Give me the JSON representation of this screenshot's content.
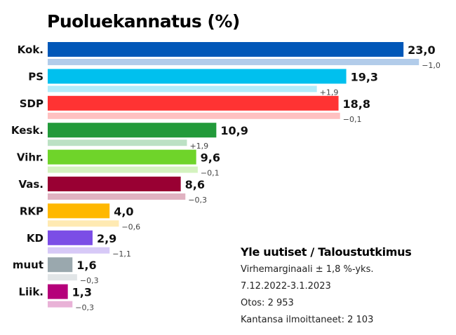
{
  "chart_data": {
    "type": "bar",
    "orientation": "horizontal",
    "title": "Puoluekannatus (%)",
    "categories": [
      "Kok.",
      "PS",
      "SDP",
      "Kesk.",
      "Vihr.",
      "Vas.",
      "RKP",
      "KD",
      "muut",
      "Liik."
    ],
    "values": [
      23.0,
      19.3,
      18.8,
      10.9,
      9.6,
      8.6,
      4.0,
      2.9,
      1.6,
      1.3
    ],
    "value_labels": [
      "23,0",
      "19,3",
      "18,8",
      "10,9",
      "9,6",
      "8,6",
      "4,0",
      "2,9",
      "1,6",
      "1,3"
    ],
    "changes": [
      -1.0,
      1.9,
      -0.1,
      1.9,
      -0.1,
      -0.3,
      -0.6,
      -1.1,
      -0.3,
      -0.3
    ],
    "change_labels": [
      "−1,0",
      "+1,9",
      "−0,1",
      "+1,9",
      "−0,1",
      "−0,3",
      "−0,6",
      "−1,1",
      "−0,3",
      "−0,3"
    ],
    "colors": [
      "#0057b8",
      "#00c0ee",
      "#ff3333",
      "#229a3a",
      "#6fd42a",
      "#990033",
      "#ffb800",
      "#7b4de6",
      "#9aa8ae",
      "#b5007a"
    ],
    "grid": false,
    "legend": "none"
  },
  "info": {
    "source": "Yle uutiset / Taloustutkimus",
    "lines": [
      "Virhemarginaali ± 1,8 %-yks.",
      "7.12.2022-3.1.2023",
      "Otos: 2 953",
      "Kantansa ilmoittaneet: 2 103"
    ]
  }
}
